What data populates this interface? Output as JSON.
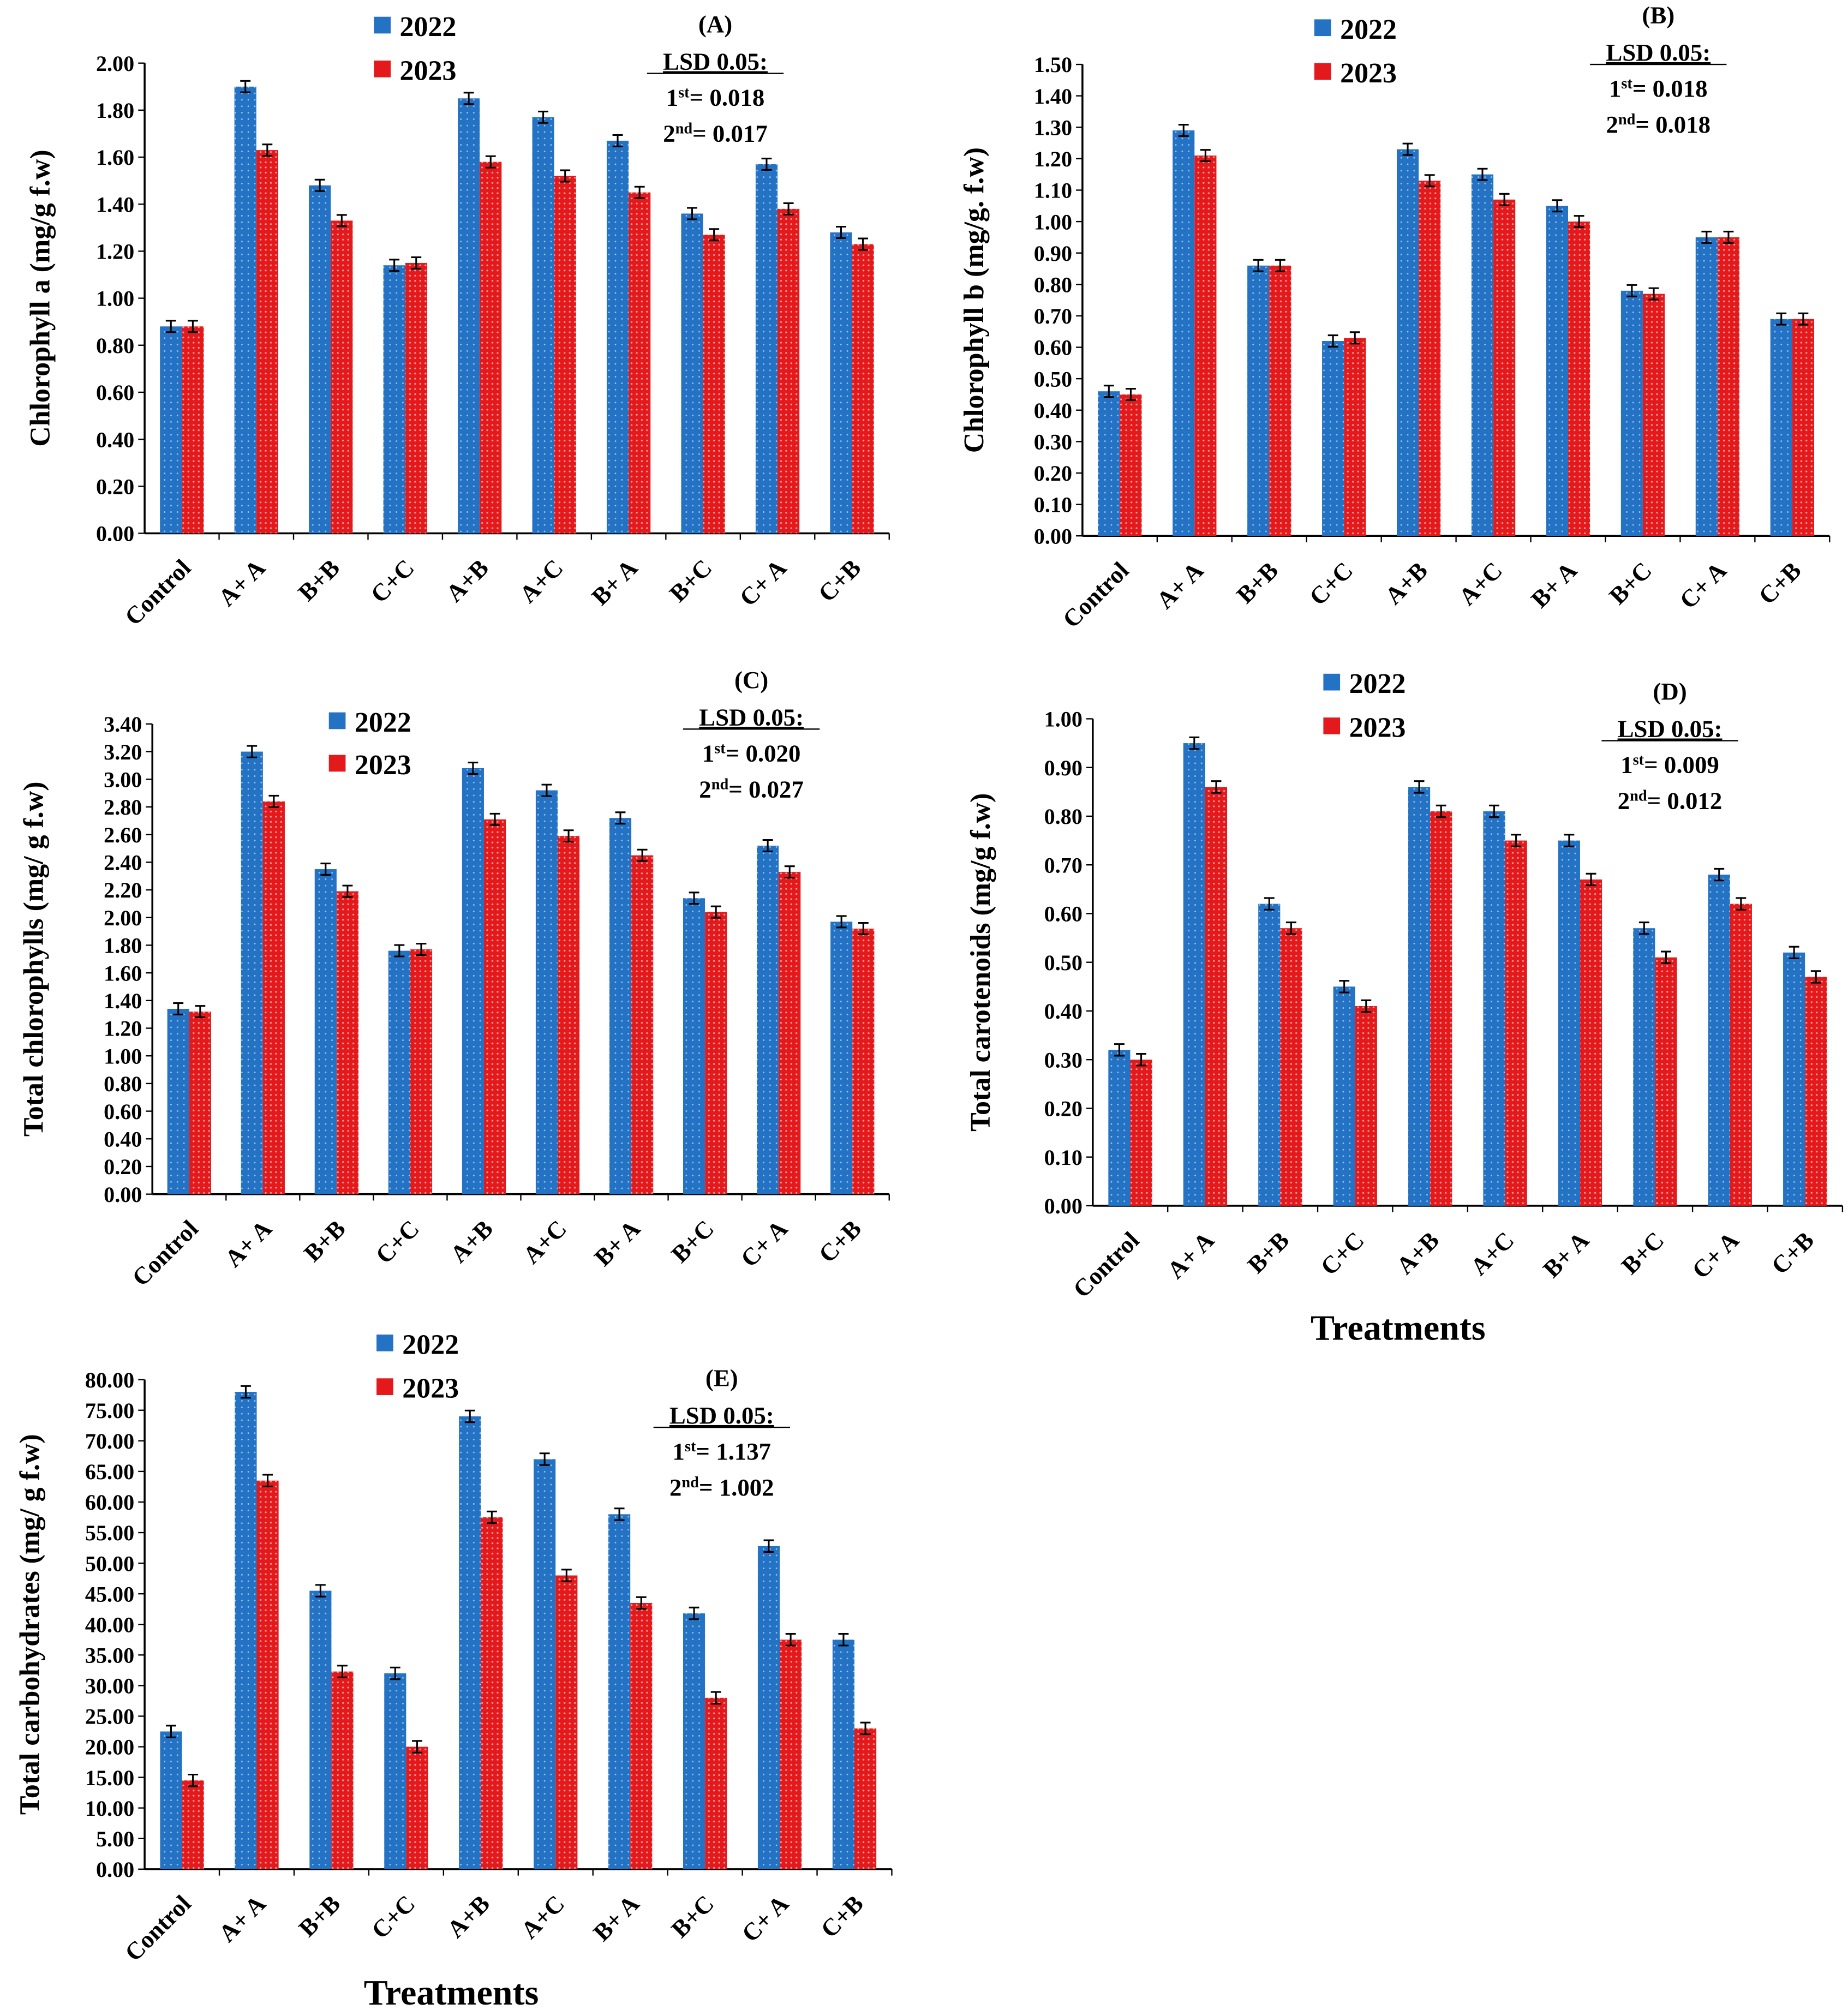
{
  "colors": {
    "y2022": "#2372c4",
    "y2023": "#e3191c"
  },
  "legend": [
    "2022",
    "2023"
  ],
  "chart_data": [
    {
      "type": "bar",
      "panel": "(A)",
      "ylabel": "Chlorophyll a (mg/g f.w)",
      "xlabel": "",
      "ylim": [
        0,
        2.0
      ],
      "ystep": 0.2,
      "decimals": 2,
      "categories": [
        "Control",
        "A+ A",
        "B+B",
        "C+C",
        "A+B",
        "A+C",
        "B+ A",
        "B+C",
        "C+ A",
        "C+B"
      ],
      "series": [
        {
          "name": "2022",
          "values": [
            0.88,
            1.9,
            1.48,
            1.14,
            1.85,
            1.77,
            1.67,
            1.36,
            1.57,
            1.28
          ]
        },
        {
          "name": "2023",
          "values": [
            0.88,
            1.63,
            1.33,
            1.15,
            1.58,
            1.52,
            1.45,
            1.27,
            1.38,
            1.23
          ]
        }
      ],
      "lsd": {
        "title": "LSD 0.05:",
        "first": "1",
        "first_sup": "st",
        "first_value": "= 0.018",
        "second": "2",
        "second_sup": "nd",
        "second_value": "= 0.017"
      }
    },
    {
      "type": "bar",
      "panel": "(B)",
      "ylabel": "Chlorophyll b (mg/g. f.w)",
      "xlabel": "",
      "ylim": [
        0,
        1.5
      ],
      "ystep": 0.1,
      "decimals": 2,
      "categories": [
        "Control",
        "A+ A",
        "B+B",
        "C+C",
        "A+B",
        "A+C",
        "B+ A",
        "B+C",
        "C+ A",
        "C+B"
      ],
      "series": [
        {
          "name": "2022",
          "values": [
            0.46,
            1.29,
            0.86,
            0.62,
            1.23,
            1.15,
            1.05,
            0.78,
            0.95,
            0.69
          ]
        },
        {
          "name": "2023",
          "values": [
            0.45,
            1.21,
            0.86,
            0.63,
            1.13,
            1.07,
            1.0,
            0.77,
            0.95,
            0.69
          ]
        }
      ],
      "lsd": {
        "title": "LSD 0.05:",
        "first": "1",
        "first_sup": "st",
        "first_value": "= 0.018",
        "second": "2",
        "second_sup": "nd",
        "second_value": "= 0.018"
      }
    },
    {
      "type": "bar",
      "panel": "(C)",
      "ylabel": "Total chlorophylls (mg/ g f.w)",
      "xlabel": "",
      "ylim": [
        0,
        3.4
      ],
      "ystep": 0.2,
      "decimals": 2,
      "categories": [
        "Control",
        "A+ A",
        "B+B",
        "C+C",
        "A+B",
        "A+C",
        "B+ A",
        "B+C",
        "C+ A",
        "C+B"
      ],
      "series": [
        {
          "name": "2022",
          "values": [
            1.34,
            3.2,
            2.35,
            1.76,
            3.08,
            2.92,
            2.72,
            2.14,
            2.52,
            1.97
          ]
        },
        {
          "name": "2023",
          "values": [
            1.32,
            2.84,
            2.19,
            1.77,
            2.71,
            2.59,
            2.45,
            2.04,
            2.33,
            1.92
          ]
        }
      ],
      "lsd": {
        "title": "LSD 0.05:",
        "first": "1",
        "first_sup": "st",
        "first_value": "= 0.020",
        "second": "2",
        "second_sup": "nd",
        "second_value": "= 0.027"
      }
    },
    {
      "type": "bar",
      "panel": "(D)",
      "ylabel": "Total carotenoids (mg/g f.w)",
      "xlabel": "Treatments",
      "ylim": [
        0,
        1.0
      ],
      "ystep": 0.1,
      "decimals": 2,
      "categories": [
        "Control",
        "A+ A",
        "B+B",
        "C+C",
        "A+B",
        "A+C",
        "B+ A",
        "B+C",
        "C+ A",
        "C+B"
      ],
      "series": [
        {
          "name": "2022",
          "values": [
            0.32,
            0.95,
            0.62,
            0.45,
            0.86,
            0.81,
            0.75,
            0.57,
            0.68,
            0.52
          ]
        },
        {
          "name": "2023",
          "values": [
            0.3,
            0.86,
            0.57,
            0.41,
            0.81,
            0.75,
            0.67,
            0.51,
            0.62,
            0.47
          ]
        }
      ],
      "lsd": {
        "title": "LSD 0.05:",
        "first": "1",
        "first_sup": "st",
        "first_value": "= 0.009",
        "second": "2",
        "second_sup": "nd",
        "second_value": "= 0.012"
      }
    },
    {
      "type": "bar",
      "panel": "(E)",
      "ylabel": "Total carbohydrates (mg/ g f.w)",
      "xlabel": "Treatments",
      "ylim": [
        0,
        80
      ],
      "ystep": 5,
      "decimals": 2,
      "categories": [
        "Control",
        "A+ A",
        "B+B",
        "C+C",
        "A+B",
        "A+C",
        "B+ A",
        "B+C",
        "C+ A",
        "C+B"
      ],
      "series": [
        {
          "name": "2022",
          "values": [
            22.5,
            78.0,
            45.5,
            32.0,
            74.0,
            67.0,
            58.0,
            41.8,
            52.8,
            37.5
          ]
        },
        {
          "name": "2023",
          "values": [
            14.5,
            63.5,
            32.3,
            20.0,
            57.5,
            48.0,
            43.5,
            28.0,
            37.5,
            23.0
          ]
        }
      ],
      "lsd": {
        "title": "LSD 0.05:",
        "first": "1",
        "first_sup": "st",
        "first_value": "= 1.137",
        "second": "2",
        "second_sup": "nd",
        "second_value": "= 1.002"
      }
    }
  ]
}
